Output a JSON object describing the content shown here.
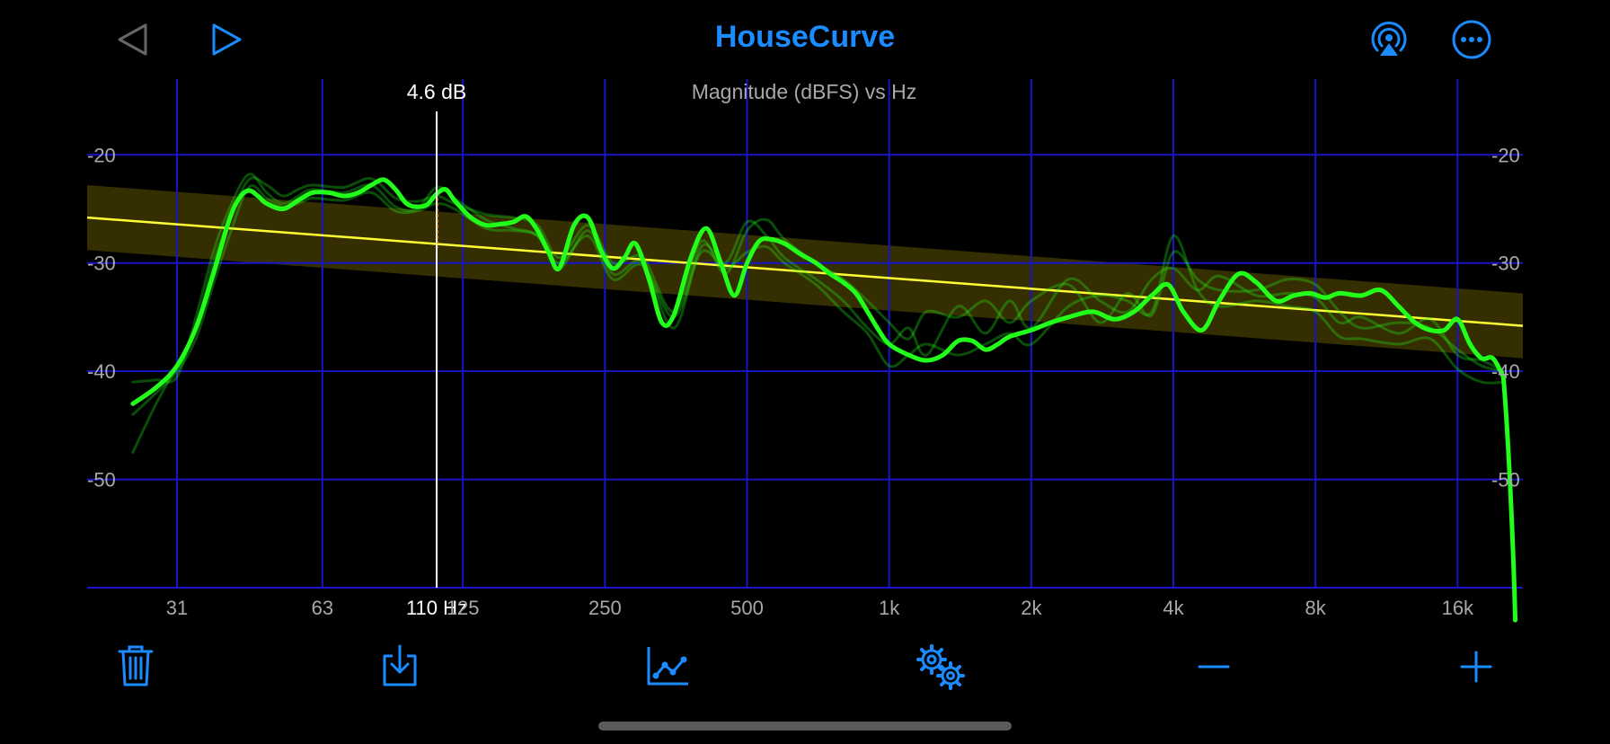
{
  "app": {
    "title": "HouseCurve"
  },
  "toolbar_top": {
    "back_icon": "triangle-left-icon",
    "play_icon": "play-icon",
    "airplay_icon": "airplay-icon",
    "more_icon": "ellipsis-circle-icon"
  },
  "toolbar_bottom": {
    "icons": [
      "trash-icon",
      "download-icon",
      "chart-line-icon",
      "gears-icon",
      "minus-icon",
      "plus-icon"
    ]
  },
  "colors": {
    "accent": "#1a8cff",
    "grid": "#1a14c8",
    "measurement": "#22ff1a",
    "target": "#ffff33",
    "target_band": "#3a3300",
    "cursor": "#ffffff"
  },
  "chart_data": {
    "type": "line",
    "title": "Magnitude (dBFS) vs Hz",
    "xscale": "log",
    "xlim": [
      20,
      22000
    ],
    "ylim": [
      -60,
      -13
    ],
    "x_ticks": [
      31,
      63,
      125,
      250,
      500,
      1000,
      2000,
      4000,
      8000,
      16000
    ],
    "x_tick_labels": [
      "31",
      "63",
      "125",
      "250",
      "500",
      "1k",
      "2k",
      "4k",
      "8k",
      "16k"
    ],
    "y_ticks": [
      -20,
      -30,
      -40,
      -50
    ],
    "y_tick_labels": [
      "-20",
      "-30",
      "-40",
      "-50"
    ],
    "cursor": {
      "freq_label": "110 Hz",
      "db_label": "4.6 dB",
      "freq": 110
    },
    "target_curve": {
      "x": [
        20,
        22000
      ],
      "y": [
        -25.8,
        -35.8
      ],
      "band": 3
    },
    "series": [
      {
        "x": [
          25,
          28,
          31,
          34,
          37,
          40,
          42,
          44,
          46,
          48,
          52,
          56,
          60,
          65,
          70,
          75,
          80,
          85,
          90,
          95,
          100,
          105,
          110,
          115,
          120,
          130,
          140,
          150,
          160,
          170,
          180,
          190,
          200,
          215,
          230,
          245,
          260,
          275,
          290,
          310,
          330,
          350,
          380,
          410,
          440,
          470,
          500,
          530,
          560,
          600,
          650,
          700,
          750,
          800,
          850,
          900,
          950,
          1000,
          1100,
          1200,
          1300,
          1400,
          1500,
          1600,
          1700,
          1800,
          2000,
          2200,
          2400,
          2700,
          3000,
          3300,
          3600,
          3900,
          4200,
          4600,
          5000,
          5500,
          6000,
          6600,
          7200,
          7800,
          8400,
          9000,
          10000,
          11000,
          12000,
          13000,
          14000,
          15000,
          16000,
          17000,
          18000,
          19000,
          20000
        ],
        "y": [
          -43,
          -41.5,
          -39.5,
          -36,
          -31,
          -26,
          -24,
          -23.3,
          -23.8,
          -24.5,
          -25,
          -24.2,
          -23.5,
          -23.5,
          -23.8,
          -23.5,
          -22.8,
          -22.3,
          -23.2,
          -24.5,
          -24.8,
          -24.6,
          -23.6,
          -23.2,
          -24.2,
          -25.8,
          -26.5,
          -26.4,
          -26.2,
          -25.7,
          -27,
          -29,
          -30.5,
          -26.5,
          -25.8,
          -28.8,
          -30.5,
          -29.5,
          -28.2,
          -31.5,
          -35.5,
          -34.8,
          -29.5,
          -26.8,
          -30,
          -33,
          -30,
          -28,
          -27.8,
          -28.2,
          -29.2,
          -30,
          -31,
          -31.8,
          -32.8,
          -34.5,
          -36.2,
          -37.5,
          -38.5,
          -39,
          -38.5,
          -37.2,
          -37.2,
          -38,
          -37.5,
          -36.8,
          -36.2,
          -35.5,
          -35,
          -34.5,
          -35.2,
          -34.5,
          -33,
          -32,
          -34.5,
          -36.2,
          -33.5,
          -31,
          -31.8,
          -33.5,
          -33,
          -32.8,
          -33.2,
          -32.8,
          -33,
          -32.5,
          -34,
          -35.5,
          -36.2,
          -36.2,
          -35.2,
          -37.5,
          -38.8,
          -38.8,
          -40.5
        ]
      },
      {
        "x": [
          25,
          28,
          31,
          34,
          37,
          40,
          44,
          48,
          52,
          56,
          60,
          70,
          80,
          90,
          100,
          110,
          120,
          140,
          160,
          180,
          200,
          230,
          260,
          300,
          350,
          400,
          450,
          500,
          550,
          600,
          700,
          800,
          900,
          1000,
          1100,
          1200,
          1400,
          1600,
          1800,
          2000,
          2400,
          2800,
          3200,
          3600,
          4000,
          4500,
          5000,
          6000,
          7000,
          8000,
          9000,
          10000,
          12000,
          14000,
          16000,
          18000,
          20000
        ],
        "y": [
          -47.5,
          -43,
          -39.5,
          -36,
          -30,
          -26,
          -22.3,
          -22.8,
          -23.8,
          -23.2,
          -22.8,
          -23,
          -22.2,
          -24,
          -24.3,
          -23.8,
          -24.5,
          -25.5,
          -25.8,
          -26.5,
          -29.5,
          -26.5,
          -30,
          -29.5,
          -34.5,
          -28,
          -31,
          -27,
          -26,
          -27.8,
          -30,
          -31.5,
          -33.5,
          -35.5,
          -37,
          -34.5,
          -35,
          -33.5,
          -35.5,
          -33.5,
          -32,
          -35.5,
          -32.8,
          -34.8,
          -29,
          -31.5,
          -32.5,
          -32.5,
          -31.5,
          -32,
          -34.5,
          -36,
          -35.5,
          -36,
          -38,
          -39.5,
          -40
        ]
      },
      {
        "x": [
          25,
          28,
          31,
          34,
          37,
          40,
          44,
          48,
          52,
          56,
          60,
          70,
          80,
          90,
          100,
          110,
          120,
          140,
          160,
          180,
          200,
          230,
          260,
          300,
          350,
          400,
          450,
          500,
          550,
          600,
          700,
          800,
          900,
          1000,
          1100,
          1200,
          1400,
          1600,
          1800,
          2000,
          2400,
          2800,
          3200,
          3600,
          4000,
          4500,
          5000,
          6000,
          7000,
          8000,
          9000,
          10000,
          12000,
          14000,
          16000,
          18000,
          20000
        ],
        "y": [
          -41,
          -40.8,
          -40.5,
          -35,
          -29,
          -25,
          -21.8,
          -23.5,
          -24.5,
          -23.8,
          -23.2,
          -23.5,
          -22.8,
          -24.8,
          -25,
          -23,
          -24,
          -26,
          -26.8,
          -27.5,
          -30.5,
          -27,
          -31,
          -30,
          -36,
          -28.5,
          -30,
          -26.2,
          -27.5,
          -29.5,
          -31.5,
          -33.5,
          -36,
          -37.5,
          -36,
          -38.5,
          -34,
          -36.5,
          -33.5,
          -36,
          -31.5,
          -33.5,
          -34.5,
          -31.5,
          -30.5,
          -32.5,
          -31.2,
          -33,
          -32.8,
          -33.2,
          -35.5,
          -35,
          -36.5,
          -35.2,
          -38.5,
          -39,
          -40
        ]
      },
      {
        "x": [
          25,
          28,
          31,
          34,
          37,
          40,
          44,
          48,
          52,
          56,
          60,
          70,
          80,
          90,
          100,
          110,
          120,
          140,
          160,
          180,
          200,
          230,
          260,
          300,
          350,
          400,
          450,
          500,
          550,
          600,
          700,
          800,
          900,
          1000,
          1100,
          1200,
          1400,
          1600,
          1800,
          2000,
          2400,
          2800,
          3200,
          3600,
          4000,
          4500,
          5000,
          6000,
          7000,
          8000,
          9000,
          10000,
          12000,
          14000,
          16000,
          18000,
          20000
        ],
        "y": [
          -44,
          -42,
          -40,
          -37,
          -32,
          -27.5,
          -23,
          -24,
          -24.8,
          -24.5,
          -24,
          -24.2,
          -23.5,
          -25.2,
          -25.2,
          -24.5,
          -25,
          -26.8,
          -27,
          -27.5,
          -30,
          -27.5,
          -31.5,
          -30.2,
          -35,
          -29,
          -30.5,
          -29,
          -28.5,
          -30,
          -32,
          -34.5,
          -36.5,
          -39.5,
          -38.5,
          -37.5,
          -38.5,
          -37.5,
          -36.5,
          -37.5,
          -34,
          -33,
          -33.5,
          -34.5,
          -27.5,
          -32.5,
          -34,
          -33.5,
          -34,
          -34.5,
          -36.8,
          -37,
          -37.5,
          -37,
          -39.8,
          -41,
          -41
        ]
      }
    ]
  }
}
